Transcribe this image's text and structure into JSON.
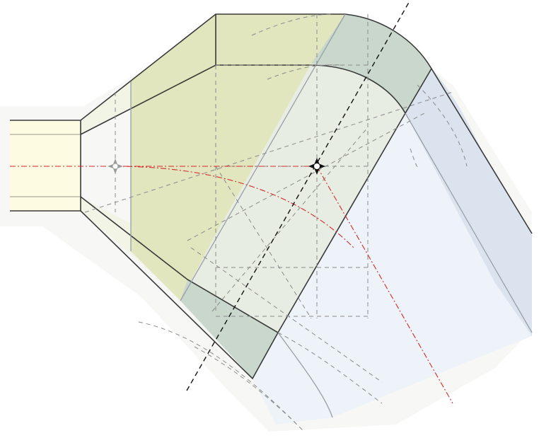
{
  "diagram": {
    "kind": "technical construction drawing of a duct transition and bend",
    "labels": [],
    "colors": {
      "duct_inlet": "#fdfbe2",
      "transition_cone": "#f2f4e6",
      "transition_green": "#e1e6bf",
      "bend_band": "#c9d7cd",
      "bend_inner": "#e7ede3",
      "outlet_body": "#eef3f9",
      "outlet_side": "#dbe3ee",
      "construction_line": "#8a8a8a",
      "axis_line": "#d42a2a",
      "bend_axis": "#111111",
      "outline": "#3a3a3a"
    },
    "markers": [
      {
        "name": "transition-center-marker",
        "style": "hollow-cross"
      },
      {
        "name": "bend-center-marker",
        "style": "solid-cross"
      }
    ]
  }
}
